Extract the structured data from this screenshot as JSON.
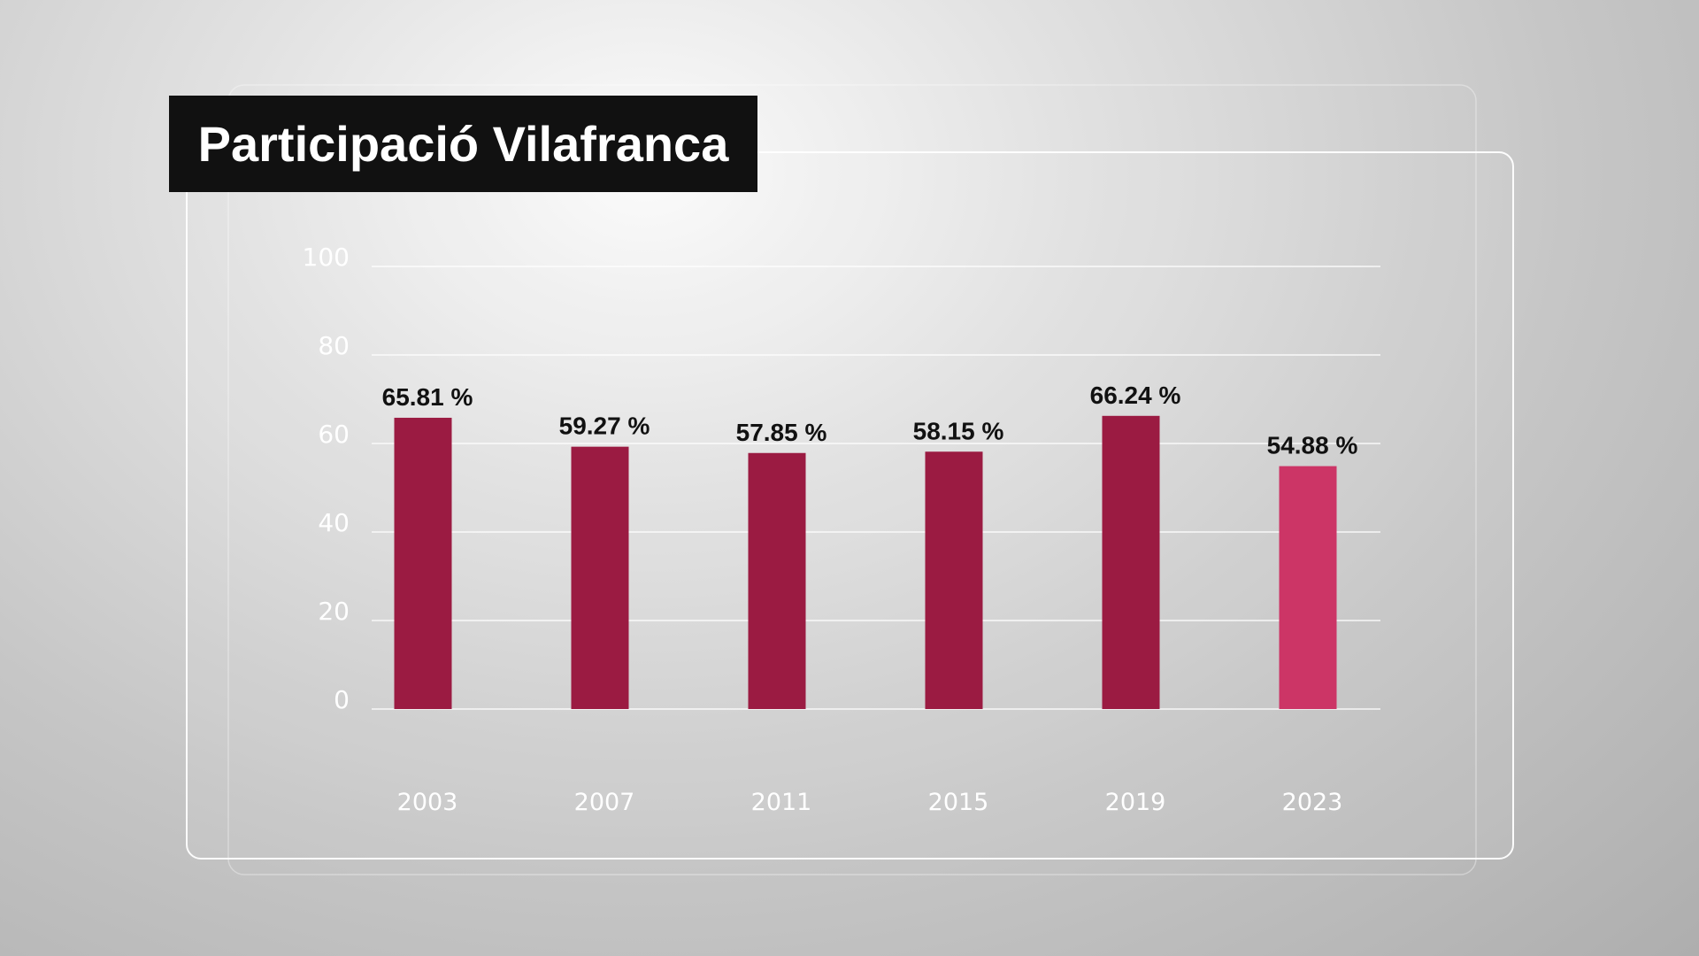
{
  "chart_data": {
    "type": "bar",
    "title": "Participació Vilafranca",
    "categories": [
      "2003",
      "2007",
      "2011",
      "2015",
      "2019",
      "2023"
    ],
    "values": [
      65.81,
      59.27,
      57.85,
      58.15,
      66.24,
      54.88
    ],
    "data_labels": [
      "65.81 %",
      "59.27 %",
      "57.85 %",
      "58.15 %",
      "66.24 %",
      "54.88 %"
    ],
    "yticks": [
      0,
      20,
      40,
      60,
      80,
      100
    ],
    "ylim": [
      0,
      100
    ],
    "xlabel": "",
    "ylabel": "",
    "grid": true,
    "legend": "none",
    "colors": {
      "bar": "#9b1b42",
      "highlight": "#cc3566"
    },
    "highlight_index": 5
  }
}
